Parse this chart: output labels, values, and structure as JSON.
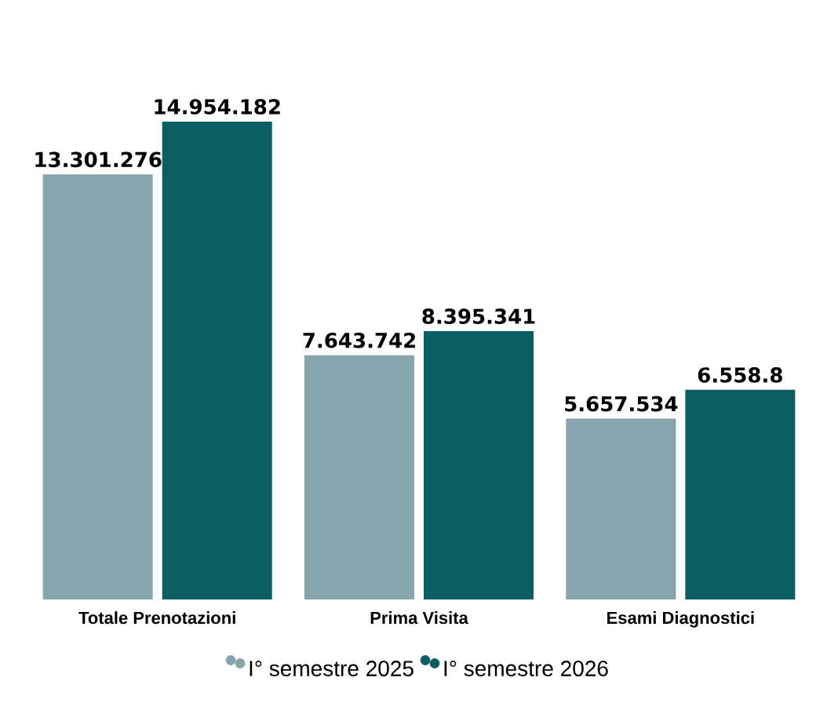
{
  "chart_data": {
    "type": "bar",
    "categories": [
      "Totale Prenotazioni",
      "Prima Visita",
      "Esami Diagnostici"
    ],
    "series": [
      {
        "name": "I° semestre 2025",
        "color": "#86a4ab",
        "values": [
          13301276,
          7643742,
          5657534
        ],
        "value_labels": [
          "13.301.276",
          "7.643.742",
          "5.657.534"
        ]
      },
      {
        "name": "I° semestre 2026",
        "color": "#0b5e63",
        "values": [
          14954182,
          8395341,
          6558800
        ],
        "value_labels": [
          "14.954.182",
          "8.395.341",
          "6.558.8"
        ]
      }
    ],
    "legend": "bottom"
  }
}
